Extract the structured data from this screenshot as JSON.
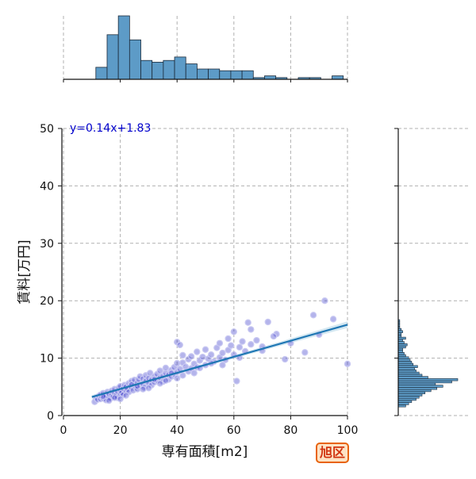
{
  "chart_data": {
    "type": "scatter",
    "xlabel": "専有面積[m2]",
    "ylabel": "賃料[万円]",
    "xlim": [
      0,
      100
    ],
    "ylim": [
      0,
      50
    ],
    "x_ticks": [
      0,
      20,
      40,
      60,
      80,
      100
    ],
    "y_ticks": [
      0,
      10,
      20,
      30,
      40,
      50
    ],
    "grid": true,
    "regression": {
      "label": "y=0.14x+1.83",
      "slope": 0.14,
      "intercept": 1.83,
      "x_range": [
        10,
        100
      ]
    },
    "badge": "旭区",
    "colors": {
      "points": "#3a3acb",
      "line": "#1f77b4",
      "band": "#9ecae1",
      "hist": "#5d9bc7",
      "hist_edge": "#1b2a3a",
      "equation": "#0000cc"
    },
    "points": [
      [
        11,
        2.4
      ],
      [
        11.5,
        3.1
      ],
      [
        12,
        2.8
      ],
      [
        12.5,
        3.4
      ],
      [
        13,
        2.9
      ],
      [
        13,
        3.6
      ],
      [
        13.5,
        3.2
      ],
      [
        14,
        3.0
      ],
      [
        14,
        3.9
      ],
      [
        14.5,
        3.4
      ],
      [
        15,
        2.7
      ],
      [
        15,
        3.5
      ],
      [
        15.5,
        4.1
      ],
      [
        16,
        3.2
      ],
      [
        16,
        3.8
      ],
      [
        16.5,
        3.0
      ],
      [
        17,
        3.6
      ],
      [
        17,
        4.3
      ],
      [
        17.5,
        3.3
      ],
      [
        18,
        3.9
      ],
      [
        18,
        4.6
      ],
      [
        18.5,
        3.5
      ],
      [
        19,
        4.2
      ],
      [
        19,
        3.1
      ],
      [
        19.5,
        4.8
      ],
      [
        20,
        3.8
      ],
      [
        20,
        4.4
      ],
      [
        20,
        5.1
      ],
      [
        20.5,
        4.0
      ],
      [
        21,
        4.7
      ],
      [
        21,
        3.6
      ],
      [
        21.5,
        5.3
      ],
      [
        22,
        4.3
      ],
      [
        22,
        5.0
      ],
      [
        22.5,
        4.6
      ],
      [
        23,
        5.6
      ],
      [
        23,
        4.1
      ],
      [
        23.5,
        5.2
      ],
      [
        24,
        4.8
      ],
      [
        24,
        6.0
      ],
      [
        24.5,
        4.4
      ],
      [
        25,
        5.3
      ],
      [
        25,
        6.2
      ],
      [
        25.5,
        4.9
      ],
      [
        26,
        5.7
      ],
      [
        26,
        4.6
      ],
      [
        26.5,
        6.3
      ],
      [
        27,
        5.2
      ],
      [
        27,
        6.8
      ],
      [
        28,
        5.5
      ],
      [
        28,
        6.4
      ],
      [
        28.5,
        4.9
      ],
      [
        29,
        6.0
      ],
      [
        29,
        7.0
      ],
      [
        30,
        5.6
      ],
      [
        30,
        6.5
      ],
      [
        30.5,
        7.4
      ],
      [
        31,
        5.3
      ],
      [
        31,
        6.2
      ],
      [
        32,
        6.8
      ],
      [
        32,
        5.8
      ],
      [
        33,
        7.2
      ],
      [
        33,
        6.1
      ],
      [
        34,
        6.6
      ],
      [
        34,
        7.8
      ],
      [
        35,
        5.9
      ],
      [
        35,
        6.9
      ],
      [
        36,
        7.4
      ],
      [
        36,
        8.3
      ],
      [
        37,
        6.3
      ],
      [
        37,
        7.1
      ],
      [
        38,
        7.9
      ],
      [
        38,
        6.8
      ],
      [
        39,
        8.4
      ],
      [
        39,
        7.2
      ],
      [
        40,
        6.5
      ],
      [
        40,
        7.6
      ],
      [
        40,
        12.8
      ],
      [
        41,
        8.1
      ],
      [
        41,
        12.3
      ],
      [
        42,
        7.0
      ],
      [
        42,
        9.2
      ],
      [
        43,
        8.5
      ],
      [
        44,
        7.7
      ],
      [
        44,
        9.8
      ],
      [
        45,
        8.2
      ],
      [
        45,
        10.3
      ],
      [
        46,
        9.0
      ],
      [
        47,
        8.4
      ],
      [
        47,
        11.1
      ],
      [
        48,
        9.6
      ],
      [
        49,
        10.2
      ],
      [
        50,
        8.8
      ],
      [
        50,
        11.5
      ],
      [
        51,
        9.9
      ],
      [
        52,
        10.6
      ],
      [
        53,
        9.4
      ],
      [
        54,
        11.8
      ],
      [
        55,
        10.1
      ],
      [
        55,
        12.6
      ],
      [
        56,
        10.9
      ],
      [
        57,
        9.7
      ],
      [
        58,
        11.4
      ],
      [
        59,
        12.2
      ],
      [
        60,
        10.6
      ],
      [
        60,
        14.6
      ],
      [
        61,
        6.0
      ],
      [
        62,
        11.9
      ],
      [
        63,
        12.9
      ],
      [
        64,
        11.2
      ],
      [
        65,
        16.2
      ],
      [
        66,
        12.4
      ],
      [
        68,
        13.1
      ],
      [
        70,
        12.0
      ],
      [
        72,
        16.3
      ],
      [
        75,
        14.2
      ],
      [
        78,
        9.8
      ],
      [
        80,
        12.6
      ],
      [
        85,
        11.0
      ],
      [
        88,
        17.5
      ],
      [
        92,
        20.0
      ],
      [
        100,
        9.0
      ],
      [
        14,
        3.3
      ],
      [
        16,
        2.6
      ],
      [
        18,
        3.1
      ],
      [
        20,
        2.9
      ],
      [
        22,
        3.5
      ],
      [
        24,
        5.4
      ],
      [
        26,
        5.1
      ],
      [
        28,
        4.6
      ],
      [
        30,
        4.8
      ],
      [
        32,
        6.3
      ],
      [
        34,
        5.6
      ],
      [
        36,
        6.1
      ],
      [
        38,
        7.4
      ],
      [
        40,
        9.1
      ],
      [
        42,
        10.5
      ],
      [
        46,
        7.4
      ],
      [
        48,
        8.3
      ],
      [
        52,
        9.1
      ],
      [
        56,
        8.8
      ],
      [
        58,
        13.4
      ],
      [
        62,
        10.1
      ],
      [
        66,
        15.0
      ],
      [
        70,
        11.3
      ],
      [
        74,
        13.8
      ],
      [
        90,
        14.1
      ],
      [
        95,
        16.8
      ]
    ],
    "top_hist": {
      "bin_start": 11.4,
      "bin_width": 3.96,
      "counts": [
        7,
        26,
        37,
        23,
        11,
        10,
        11,
        13,
        9,
        6,
        6,
        5,
        5,
        5,
        1,
        2,
        1,
        0,
        1,
        1,
        0,
        2
      ]
    },
    "right_hist": {
      "bin_start": 1.5,
      "bin_width": 0.38,
      "counts": [
        5,
        7,
        9,
        12,
        14,
        16,
        18,
        22,
        26,
        30,
        25,
        36,
        40,
        20,
        16,
        14,
        12,
        11,
        13,
        10,
        9,
        8,
        7,
        5,
        4,
        3,
        3,
        5,
        6,
        4,
        3,
        5,
        2,
        2,
        3,
        2,
        1,
        1,
        1,
        1
      ]
    }
  }
}
